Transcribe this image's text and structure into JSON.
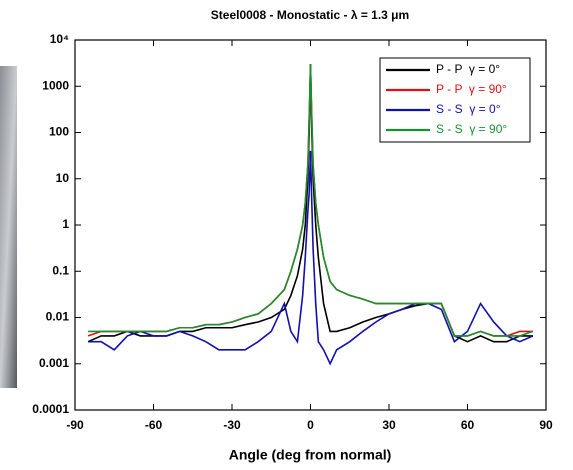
{
  "chart_data": {
    "type": "line",
    "title": "Steel0008 - Monostatic - λ = 1.3 μm",
    "xlabel": "Angle (deg from normal)",
    "log_y": true,
    "grid": false,
    "legend": "upper right",
    "xlim": [
      -90,
      90
    ],
    "xticks": [
      -90,
      -60,
      -30,
      0,
      30,
      60,
      90
    ],
    "ylim": [
      0.0001,
      10000
    ],
    "yticks": [
      0.0001,
      0.001,
      0.01,
      0.1,
      1,
      10,
      100,
      1000,
      {
        "value": 10000,
        "label": "10⁴"
      }
    ],
    "x": [
      -85,
      -80,
      -75,
      -70,
      -65,
      -60,
      -55,
      -50,
      -45,
      -40,
      -35,
      -30,
      -25,
      -20,
      -15,
      -10,
      -7.5,
      -5,
      -3,
      -2,
      -1,
      -0.5,
      0,
      0.5,
      1,
      2,
      3,
      5,
      7.5,
      10,
      15,
      20,
      25,
      30,
      35,
      40,
      45,
      50,
      55,
      60,
      65,
      70,
      75,
      80,
      85
    ],
    "series": [
      {
        "name": "P - P  γ = 0°",
        "color": "#000000",
        "values": [
          0.003,
          0.004,
          0.004,
          0.005,
          0.004,
          0.004,
          0.004,
          0.005,
          0.005,
          0.006,
          0.006,
          0.006,
          0.007,
          0.008,
          0.01,
          0.015,
          0.03,
          0.08,
          0.3,
          1,
          10,
          100,
          3000,
          100,
          10,
          1,
          0.2,
          0.02,
          0.005,
          0.005,
          0.006,
          0.008,
          0.01,
          0.012,
          0.015,
          0.018,
          0.02,
          0.02,
          0.004,
          0.003,
          0.004,
          0.003,
          0.003,
          0.004,
          0.004
        ]
      },
      {
        "name": "P - P  γ = 90°",
        "color": "#e01010",
        "values": [
          0.004,
          0.005,
          0.005,
          0.005,
          0.005,
          0.005,
          0.005,
          0.006,
          0.006,
          0.007,
          0.007,
          0.008,
          0.01,
          0.012,
          0.02,
          0.04,
          0.1,
          0.3,
          1,
          3,
          20,
          200,
          2500,
          200,
          20,
          3,
          1,
          0.2,
          0.06,
          0.04,
          0.03,
          0.025,
          0.02,
          0.02,
          0.02,
          0.02,
          0.02,
          0.02,
          0.004,
          0.004,
          0.005,
          0.004,
          0.004,
          0.005,
          0.005
        ]
      },
      {
        "name": "S - S  γ = 0°",
        "color": "#1010b0",
        "values": [
          0.003,
          0.003,
          0.002,
          0.004,
          0.005,
          0.004,
          0.004,
          0.005,
          0.004,
          0.003,
          0.002,
          0.002,
          0.002,
          0.003,
          0.005,
          0.02,
          0.005,
          0.003,
          0.03,
          0.2,
          2,
          5,
          40,
          3,
          0.3,
          0.02,
          0.003,
          0.002,
          0.001,
          0.002,
          0.003,
          0.005,
          0.008,
          0.012,
          0.015,
          0.02,
          0.02,
          0.015,
          0.003,
          0.005,
          0.02,
          0.008,
          0.004,
          0.003,
          0.004
        ]
      },
      {
        "name": "S - S  γ = 90°",
        "color": "#1a9030",
        "values": [
          0.005,
          0.005,
          0.005,
          0.005,
          0.005,
          0.005,
          0.005,
          0.006,
          0.006,
          0.007,
          0.007,
          0.008,
          0.01,
          0.012,
          0.02,
          0.04,
          0.1,
          0.3,
          1,
          3,
          20,
          200,
          3000,
          200,
          20,
          3,
          1,
          0.2,
          0.06,
          0.04,
          0.03,
          0.025,
          0.02,
          0.02,
          0.02,
          0.02,
          0.02,
          0.02,
          0.004,
          0.004,
          0.005,
          0.004,
          0.004,
          0.004,
          0.005
        ]
      }
    ]
  }
}
